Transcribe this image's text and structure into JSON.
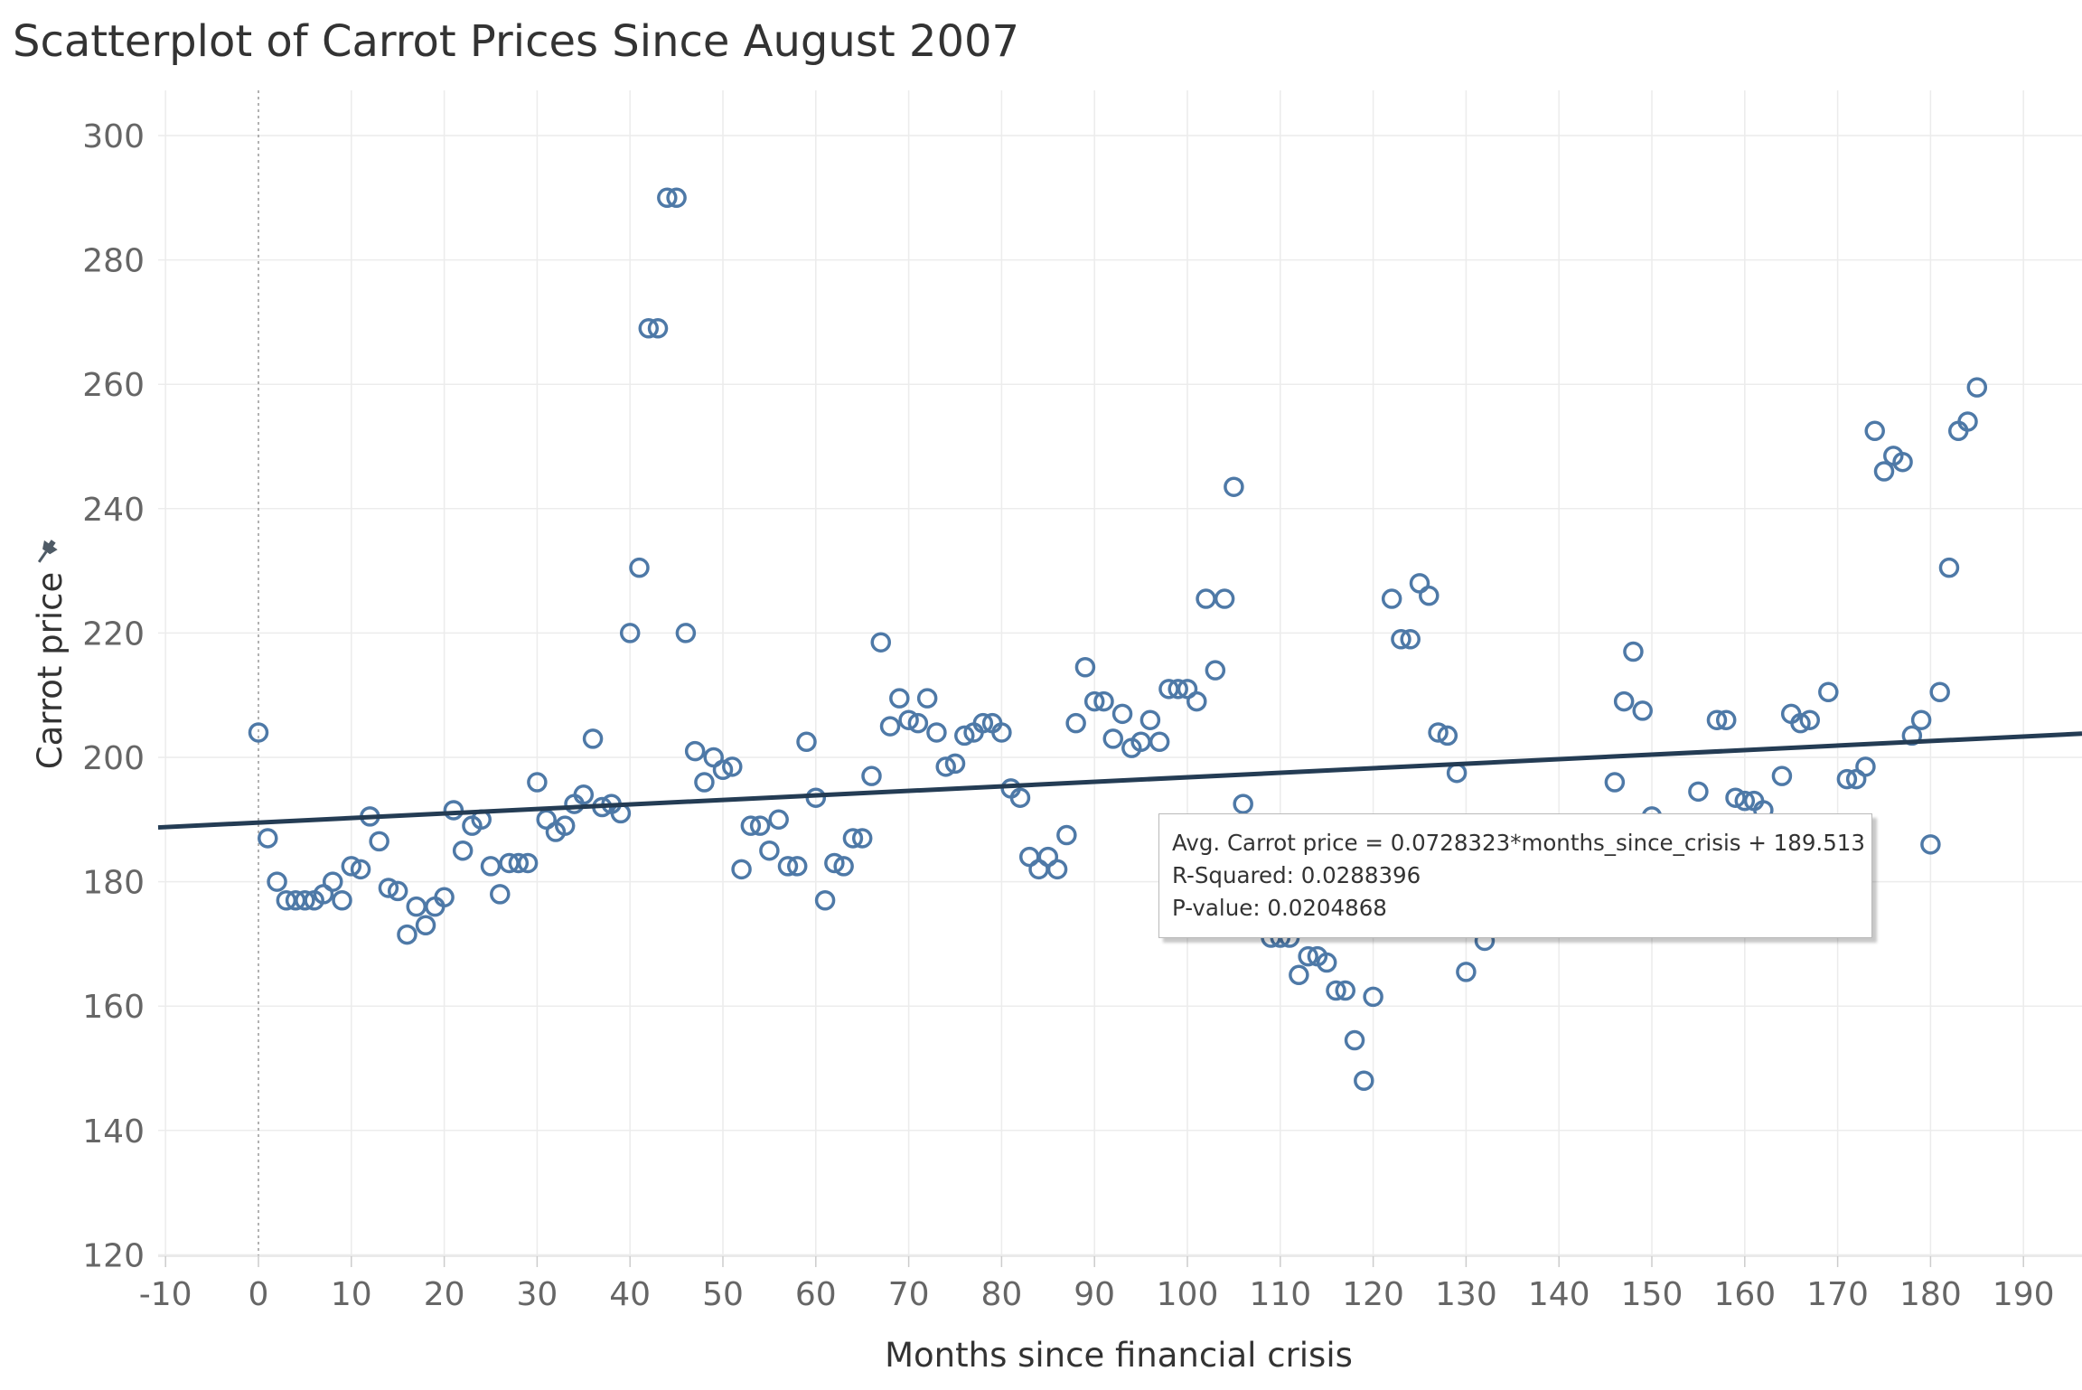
{
  "chart_data": {
    "type": "scatter",
    "title": "Scatterplot of Carrot Prices Since August 2007",
    "xlabel": "Months since financial crisis",
    "ylabel": "Carrot price",
    "xlim": [
      -15,
      197
    ],
    "ylim": [
      113,
      307
    ],
    "x_ticks": [
      -10,
      0,
      10,
      20,
      30,
      40,
      50,
      60,
      70,
      80,
      90,
      100,
      110,
      120,
      130,
      140,
      150,
      160,
      170,
      180,
      190
    ],
    "y_ticks": [
      120,
      140,
      160,
      180,
      200,
      220,
      240,
      260,
      280,
      300
    ],
    "grid": true,
    "legend": "none",
    "reference_line_x": 0,
    "trend_line": {
      "slope": 0.0728323,
      "intercept": 189.513
    },
    "tooltip_lines": [
      "Avg. Carrot price = 0.0728323*months_since_crisis + 189.513",
      "R-Squared: 0.0288396",
      "P-value: 0.0204868"
    ],
    "colors": {
      "marker": "#4e79a7",
      "trend": "#243c54",
      "grid": "#ececec",
      "text": "#666666"
    },
    "points": [
      [
        0,
        204
      ],
      [
        1,
        187
      ],
      [
        2,
        180
      ],
      [
        3,
        177
      ],
      [
        4,
        177
      ],
      [
        5,
        177
      ],
      [
        6,
        177
      ],
      [
        7,
        178
      ],
      [
        8,
        180
      ],
      [
        9,
        177
      ],
      [
        10,
        182.5
      ],
      [
        11,
        182
      ],
      [
        12,
        190.5
      ],
      [
        13,
        186.5
      ],
      [
        14,
        179
      ],
      [
        15,
        178.5
      ],
      [
        16,
        171.5
      ],
      [
        17,
        176
      ],
      [
        18,
        173
      ],
      [
        19,
        176
      ],
      [
        20,
        177.5
      ],
      [
        21,
        191.5
      ],
      [
        22,
        185
      ],
      [
        23,
        189
      ],
      [
        24,
        190
      ],
      [
        25,
        182.5
      ],
      [
        26,
        178
      ],
      [
        27,
        183
      ],
      [
        28,
        183
      ],
      [
        29,
        183
      ],
      [
        30,
        196
      ],
      [
        31,
        190
      ],
      [
        32,
        188
      ],
      [
        33,
        189
      ],
      [
        34,
        192.5
      ],
      [
        35,
        194
      ],
      [
        36,
        203
      ],
      [
        37,
        192
      ],
      [
        38,
        192.5
      ],
      [
        39,
        191
      ],
      [
        40,
        220
      ],
      [
        41,
        230.5
      ],
      [
        42,
        269
      ],
      [
        43,
        269
      ],
      [
        44,
        290
      ],
      [
        45,
        290
      ],
      [
        46,
        220
      ],
      [
        47,
        201
      ],
      [
        48,
        196
      ],
      [
        49,
        200
      ],
      [
        50,
        198
      ],
      [
        51,
        198.5
      ],
      [
        52,
        182
      ],
      [
        53,
        189
      ],
      [
        54,
        189
      ],
      [
        55,
        185
      ],
      [
        56,
        190
      ],
      [
        57,
        182.5
      ],
      [
        58,
        182.5
      ],
      [
        59,
        202.5
      ],
      [
        60,
        193.5
      ],
      [
        61,
        177
      ],
      [
        62,
        183
      ],
      [
        63,
        182.5
      ],
      [
        64,
        187
      ],
      [
        65,
        187
      ],
      [
        66,
        197
      ],
      [
        67,
        218.5
      ],
      [
        68,
        205
      ],
      [
        69,
        209.5
      ],
      [
        70,
        206
      ],
      [
        71,
        205.5
      ],
      [
        72,
        209.5
      ],
      [
        73,
        204
      ],
      [
        74,
        198.5
      ],
      [
        75,
        199
      ],
      [
        76,
        203.5
      ],
      [
        77,
        204
      ],
      [
        78,
        205.5
      ],
      [
        79,
        205.5
      ],
      [
        80,
        204
      ],
      [
        81,
        195
      ],
      [
        82,
        193.5
      ],
      [
        83,
        184
      ],
      [
        84,
        182
      ],
      [
        85,
        184
      ],
      [
        86,
        182
      ],
      [
        87,
        187.5
      ],
      [
        88,
        205.5
      ],
      [
        89,
        214.5
      ],
      [
        90,
        209
      ],
      [
        91,
        209
      ],
      [
        92,
        203
      ],
      [
        93,
        207
      ],
      [
        94,
        201.5
      ],
      [
        95,
        202.5
      ],
      [
        96,
        206
      ],
      [
        97,
        202.5
      ],
      [
        98,
        211
      ],
      [
        99,
        211
      ],
      [
        100,
        211
      ],
      [
        101,
        209
      ],
      [
        102,
        225.5
      ],
      [
        103,
        214
      ],
      [
        104,
        225.5
      ],
      [
        105,
        243.5
      ],
      [
        106,
        192.5
      ],
      [
        109,
        171
      ],
      [
        110,
        171
      ],
      [
        111,
        171
      ],
      [
        112,
        165
      ],
      [
        113,
        168
      ],
      [
        114,
        168
      ],
      [
        115,
        167
      ],
      [
        116,
        162.5
      ],
      [
        117,
        162.5
      ],
      [
        118,
        154.5
      ],
      [
        119,
        148
      ],
      [
        120,
        161.5
      ],
      [
        122,
        225.5
      ],
      [
        123,
        219
      ],
      [
        124,
        219
      ],
      [
        125,
        228
      ],
      [
        126,
        226
      ],
      [
        127,
        204
      ],
      [
        128,
        203.5
      ],
      [
        129,
        197.5
      ],
      [
        130,
        165.5
      ],
      [
        132,
        170.5
      ],
      [
        146,
        196
      ],
      [
        147,
        209
      ],
      [
        148,
        217
      ],
      [
        149,
        207.5
      ],
      [
        150,
        190.5
      ],
      [
        155,
        194.5
      ],
      [
        157,
        206
      ],
      [
        158,
        206
      ],
      [
        159,
        193.5
      ],
      [
        160,
        193
      ],
      [
        161,
        193
      ],
      [
        162,
        191.5
      ],
      [
        164,
        197
      ],
      [
        165,
        207
      ],
      [
        166,
        205.5
      ],
      [
        167,
        206
      ],
      [
        169,
        210.5
      ],
      [
        171,
        196.5
      ],
      [
        172,
        196.5
      ],
      [
        173,
        198.5
      ],
      [
        174,
        252.5
      ],
      [
        175,
        246
      ],
      [
        176,
        248.5
      ],
      [
        177,
        247.5
      ],
      [
        178,
        203.5
      ],
      [
        179,
        206
      ],
      [
        180,
        186
      ],
      [
        181,
        210.5
      ],
      [
        182,
        230.5
      ],
      [
        183,
        252.5
      ],
      [
        184,
        254
      ],
      [
        185,
        259.5
      ]
    ]
  }
}
